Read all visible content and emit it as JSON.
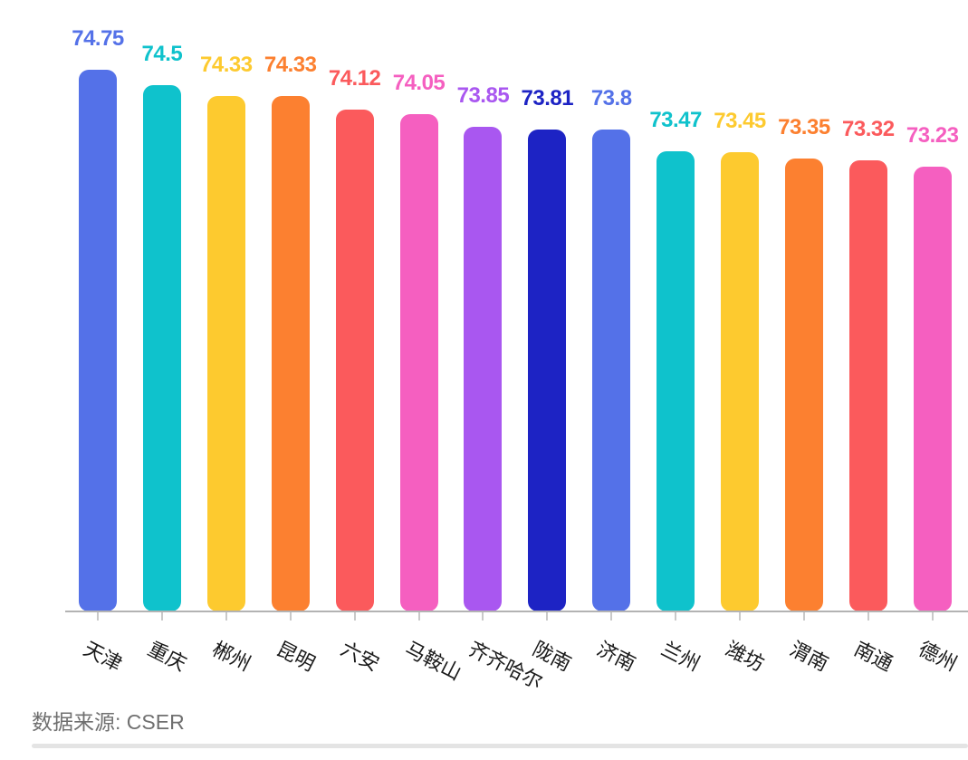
{
  "chart_data": {
    "type": "bar",
    "title": "",
    "xlabel": "",
    "ylabel": "",
    "categories": [
      "天津",
      "重庆",
      "郴州",
      "昆明",
      "六安",
      "马鞍山",
      "齐齐哈尔",
      "陇南",
      "济南",
      "兰州",
      "潍坊",
      "渭南",
      "南通",
      "德州"
    ],
    "values": [
      74.75,
      74.5,
      74.33,
      74.33,
      74.12,
      74.05,
      73.85,
      73.81,
      73.8,
      73.47,
      73.45,
      73.35,
      73.32,
      73.23
    ],
    "value_labels": [
      "74.75",
      "74.5",
      "74.33",
      "74.33",
      "74.12",
      "74.05",
      "73.85",
      "73.81",
      "73.8",
      "73.47",
      "73.45",
      "73.35",
      "73.32",
      "73.23"
    ],
    "bar_colors": [
      "#5471e8",
      "#0fc2cc",
      "#fdca2f",
      "#fc8030",
      "#fb5a5c",
      "#f55fc0",
      "#a957f0",
      "#1d23c4",
      "#5471e8",
      "#0fc2cc",
      "#fdca2f",
      "#fc8030",
      "#fb5a5c",
      "#f55fc0"
    ],
    "ylim": [
      66.25,
      74.9
    ],
    "grid": false,
    "legend": false,
    "value_labels_shown": true,
    "x_labels_rotated": true
  },
  "footer": {
    "source_label": "数据来源: CSER"
  },
  "colors": {
    "background": "#ffffff",
    "axis_line": "#b3b3b3",
    "tick": "#c9c9c9",
    "category_text": "#1a1a1a",
    "source_text": "#707070",
    "divider": "#e4e4e4"
  }
}
